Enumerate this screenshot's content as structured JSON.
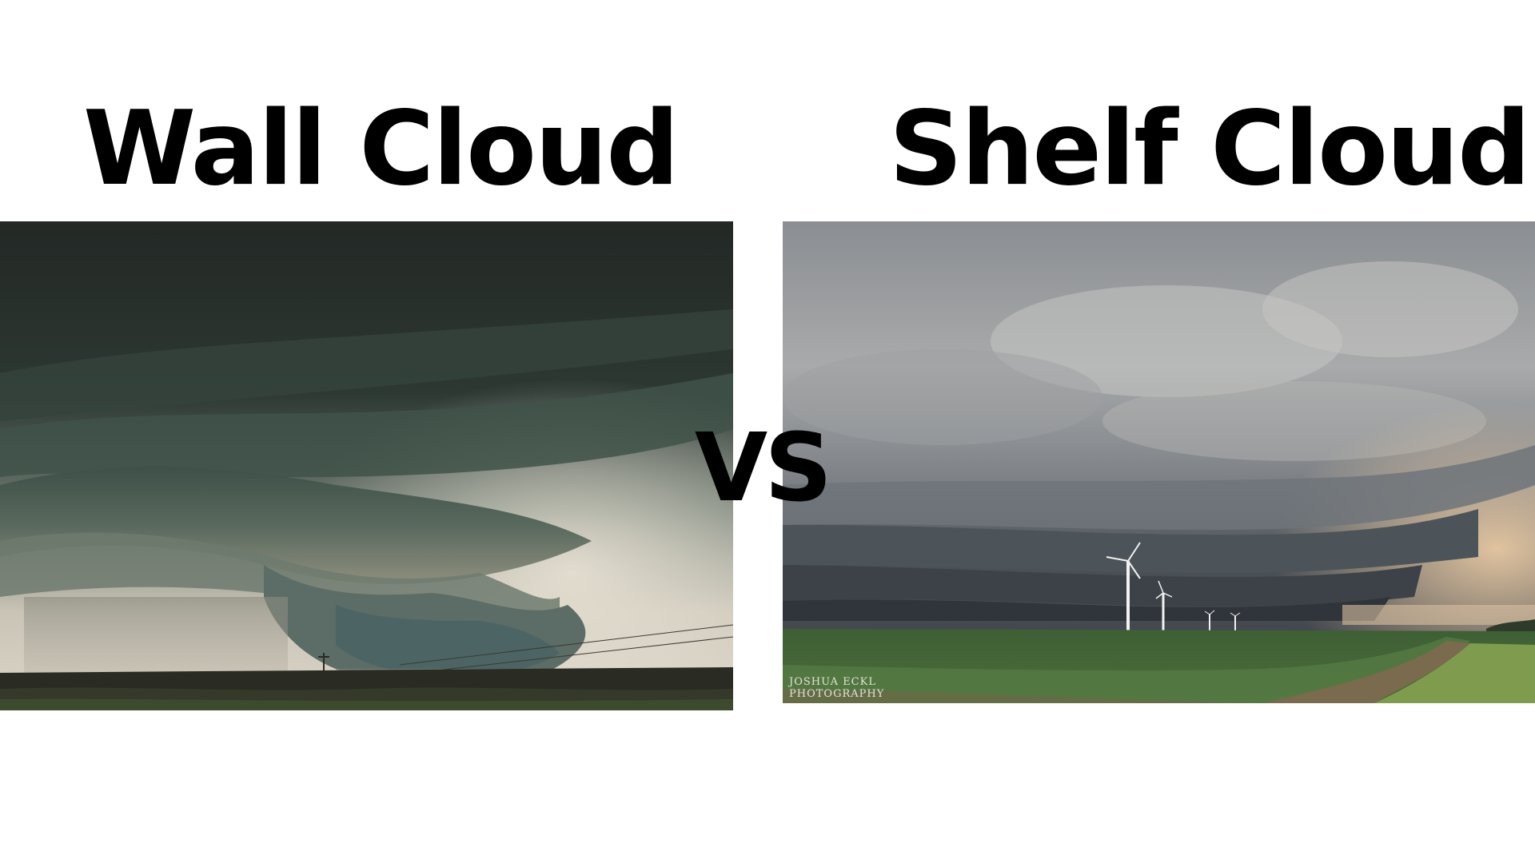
{
  "left": {
    "title": "Wall Cloud",
    "photo_icon": "wall-cloud-photo"
  },
  "right": {
    "title": "Shelf Cloud",
    "photo_icon": "shelf-cloud-photo",
    "watermark_line1": "JOSHUA ECKL",
    "watermark_line2": "PHOTOGRAPHY"
  },
  "versus_label": "VS",
  "colors": {
    "background": "#ffffff",
    "text": "#000000",
    "wall_sky_dark": "#242a27",
    "wall_cloud_green": "#4a5d55",
    "shelf_sky_gray": "#8a8d91",
    "shelf_field_green": "#47693a"
  }
}
